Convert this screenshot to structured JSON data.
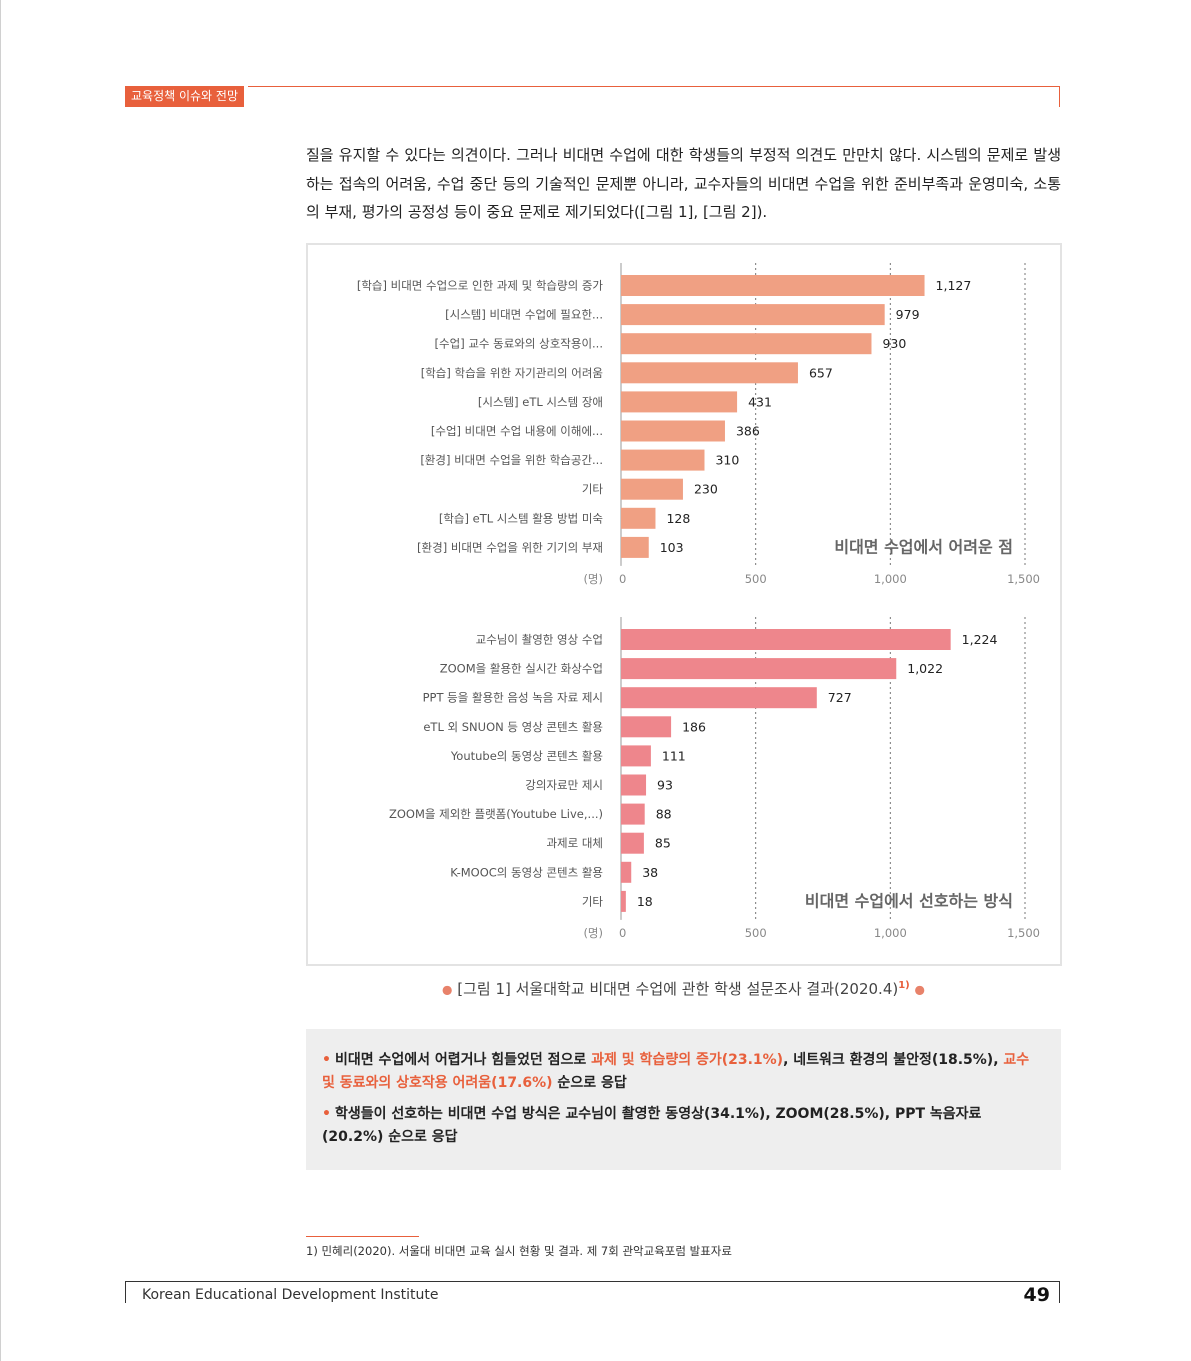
{
  "header": {
    "tag": "교육정책 이슈와 전망"
  },
  "body": {
    "paragraph": "질을 유지할 수 있다는 의견이다. 그러나 비대면 수업에 대한 학생들의 부정적 의견도 만만치 않다. 시스템의 문제로 발생하는 접속의 어려움, 수업 중단 등의 기술적인 문제뿐 아니라, 교수자들의 비대면 수업을 위한 준비부족과 운영미숙, 소통의 부재, 평가의 공정성 등이 중요 문제로 제기되었다([그림 1], [그림 2])."
  },
  "colors": {
    "accent": "#e8603c",
    "bar_top": "#f0a083",
    "bar_bottom": "#ee868c",
    "summary_bg": "#eeeeee"
  },
  "chart_data": [
    {
      "type": "bar",
      "orientation": "horizontal",
      "title": "비대면 수업에서 어려운 점",
      "unit_label": "(명)",
      "xlim": [
        0,
        1500
      ],
      "ticks": [
        "0",
        "500",
        "1,000",
        "1,500"
      ],
      "grid": "dotted vertical",
      "categories": [
        "[학습] 비대면 수업으로 인한 과제 및 학습량의 증가",
        "[시스템] 비대면 수업에 필요한...",
        "[수업] 교수 동료와의 상호작용이...",
        "[학습] 학습을 위한 자기관리의 어려움",
        "[시스템] eTL 시스템 장애",
        "[수업] 비대면 수업 내용에 이해에...",
        "[환경] 비대면 수업을 위한 학습공간...",
        "기타",
        "[학습] eTL 시스템 활용 방법 미숙",
        "[환경] 비대면 수업을 위한 기기의 부재"
      ],
      "values": [
        1127,
        979,
        930,
        657,
        431,
        386,
        310,
        230,
        128,
        103
      ],
      "value_labels": [
        "1,127",
        "979",
        "930",
        "657",
        "431",
        "386",
        "310",
        "230",
        "128",
        "103"
      ],
      "color": "#f0a083"
    },
    {
      "type": "bar",
      "orientation": "horizontal",
      "title": "비대면 수업에서 선호하는 방식",
      "unit_label": "(명)",
      "xlim": [
        0,
        1500
      ],
      "ticks": [
        "0",
        "500",
        "1,000",
        "1,500"
      ],
      "grid": "dotted vertical",
      "categories": [
        "교수님이 촬영한 영상 수업",
        "ZOOM을 활용한 실시간 화상수업",
        "PPT 등을 활용한 음성 녹음 자료 제시",
        "eTL 외 SNUON 등 영상 콘텐츠 활용",
        "Youtube의 동영상 콘텐츠 활용",
        "강의자료만 제시",
        "ZOOM을 제외한 플랫폼(Youtube Live,...)",
        "과제로 대체",
        "K-MOOC의 동영상 콘텐츠 활용",
        "기타"
      ],
      "values": [
        1224,
        1022,
        727,
        186,
        111,
        93,
        88,
        85,
        38,
        18
      ],
      "value_labels": [
        "1,224",
        "1,022",
        "727",
        "186",
        "111",
        "93",
        "88",
        "85",
        "38",
        "18"
      ],
      "color": "#ee868c"
    }
  ],
  "caption": {
    "text": "[그림 1] 서울대학교 비대면 수업에 관한 학생 설문조사 결과(2020.4)",
    "ref": "1)"
  },
  "summary": {
    "item1": {
      "a": "비대면 수업에서 어렵거나 힘들었던 점으로 ",
      "b": "과제 및 학습량의 증가(23.1%)",
      "c": ", 네트워크 환경의 불안정(18.5%), ",
      "d": "교수 및 동료와의 상호작용 어려움(17.6%)",
      "e": " 순으로 응답"
    },
    "item2": "학생들이 선호하는 비대면 수업 방식은 교수님이 촬영한 동영상(34.1%), ZOOM(28.5%), PPT 녹음자료(20.2%) 순으로 응답"
  },
  "footnote": "1) 민혜리(2020). 서울대 비대면 교육 실시 현황 및 결과. 제 7회 관악교육포럼 발표자료",
  "footer": {
    "institute": "Korean Educational Development Institute",
    "page": "49"
  }
}
